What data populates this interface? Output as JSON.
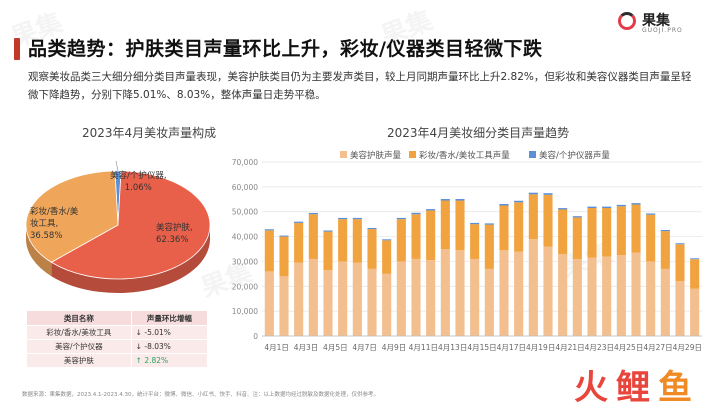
{
  "header": {
    "title": "品类趋势：护肤类目声量环比上升，彩妆/仪器类目轻微下跌",
    "description": "观察美妆品类三大细分细分类目声量表现，美容护肤类目仍为主要发声类目，较上月同期声量环比上升2.82%，但彩妆和美容仪器类目声量呈轻微下降趋势，分别下降5.01%、8.03%，整体声量日走势平稳。"
  },
  "logo": {
    "name": "果集",
    "sub": "GUOJI.PRO",
    "mark_colors": [
      "#e23b4a",
      "#2c2c2c"
    ]
  },
  "watermark": "果集",
  "pie": {
    "title": "2023年4月美妆声量构成",
    "slices": [
      {
        "name": "美容护肤",
        "label": "美容护肤,",
        "value_label": "62.36%",
        "value": 62.36,
        "color": "#e8604a"
      },
      {
        "name": "彩妆/香水/美妆工具",
        "label": "彩妆/香水/美\n妆工具,",
        "value_label": "36.58%",
        "value": 36.58,
        "color": "#f0a65a"
      },
      {
        "name": "美容/个护仪器",
        "label": "美容/个护仪器,",
        "value_label": "1.06%",
        "value": 1.06,
        "color": "#5b8fd6"
      }
    ]
  },
  "table": {
    "headers": [
      "类目名称",
      "声量环比增幅"
    ],
    "rows": [
      {
        "name": "彩妆/香水/美妆工具",
        "arrow": "↓",
        "change": "-5.01%",
        "direction": "down"
      },
      {
        "name": "美容/个护仪器",
        "arrow": "↓",
        "change": "-8.03%",
        "direction": "down"
      },
      {
        "name": "美容护肤",
        "arrow": "↑",
        "change": "2.82%",
        "direction": "up"
      }
    ]
  },
  "chart_data": {
    "type": "bar",
    "stacked": true,
    "title": "2023年4月美妆细分类目声量趋势",
    "legend_position": "top",
    "grid": true,
    "ylim": [
      0,
      70000
    ],
    "yticks": [
      "0",
      "10,000",
      "20,000",
      "30,000",
      "40,000",
      "50,000",
      "60,000",
      "70,000"
    ],
    "categories": [
      "4月1日",
      "4月2日",
      "4月3日",
      "4月4日",
      "4月5日",
      "4月6日",
      "4月7日",
      "4月8日",
      "4月9日",
      "4月10日",
      "4月11日",
      "4月12日",
      "4月13日",
      "4月14日",
      "4月15日",
      "4月16日",
      "4月17日",
      "4月18日",
      "4月19日",
      "4月20日",
      "4月21日",
      "4月22日",
      "4月23日",
      "4月24日",
      "4月25日",
      "4月26日",
      "4月27日",
      "4月28日",
      "4月29日",
      "4月30日"
    ],
    "xtick_labels": [
      "4月1日",
      "",
      "4月3日",
      "",
      "4月5日",
      "",
      "4月7日",
      "",
      "4月9日",
      "",
      "4月11日",
      "",
      "4月13日",
      "",
      "4月15日",
      "",
      "4月17日",
      "",
      "4月19日",
      "",
      "4月21日",
      "",
      "4月23日",
      "",
      "4月25日",
      "",
      "4月27日",
      "",
      "4月29日",
      ""
    ],
    "series": [
      {
        "name": "美容护肤声量",
        "color": "#f4bf8e",
        "values": [
          26000,
          24000,
          29500,
          31000,
          26500,
          30000,
          29500,
          27000,
          25000,
          30000,
          31000,
          30500,
          35000,
          34500,
          31000,
          27000,
          34500,
          34000,
          39000,
          36000,
          33000,
          31000,
          31500,
          32000,
          32500,
          33500,
          30000,
          27000,
          22000,
          19000
        ]
      },
      {
        "name": "彩妆/香水/美妆工具声量",
        "color": "#f0a33e",
        "values": [
          16500,
          16000,
          16000,
          18000,
          15500,
          17000,
          17500,
          16000,
          13500,
          17000,
          18000,
          20000,
          19500,
          20000,
          14000,
          17800,
          18000,
          19800,
          18000,
          20800,
          17900,
          16700,
          20000,
          19500,
          19700,
          19400,
          18800,
          15200,
          14900,
          11900
        ]
      },
      {
        "name": "美容/个护仪器声量",
        "color": "#5b8fd6",
        "values": [
          450,
          400,
          500,
          500,
          450,
          500,
          500,
          450,
          400,
          500,
          550,
          550,
          600,
          600,
          500,
          500,
          600,
          600,
          650,
          650,
          550,
          500,
          550,
          550,
          550,
          550,
          500,
          450,
          400,
          350
        ]
      }
    ]
  },
  "footer": "数据来源：果集数据，2023.4.1-2023.4.30，统计平台：微博、微信、小红书、快手、抖音、注：以上数据均经过脱敏及数据化处理，仅供参考。",
  "brand": {
    "chars": [
      "火",
      "鲤",
      "鱼"
    ],
    "colors": [
      "#e8453c",
      "#e8453c",
      "#f08a24"
    ]
  }
}
